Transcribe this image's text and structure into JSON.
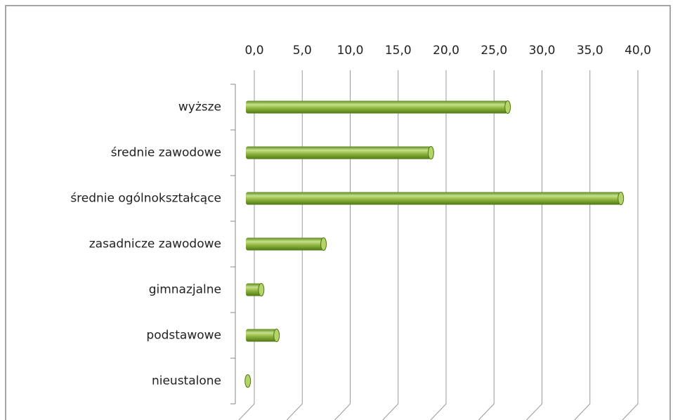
{
  "chart_data": {
    "type": "bar",
    "orientation": "horizontal",
    "categories": [
      "wyższe",
      "średnie zawodowe",
      "średnie ogólnokształcące",
      "zasadnicze zawodowe",
      "gimnazjalne",
      "podstawowe",
      "nieustalone"
    ],
    "values": [
      27.3,
      19.3,
      39.1,
      8.1,
      1.6,
      3.2,
      0.2
    ],
    "color": "#8cb43c",
    "xlim": [
      0,
      40
    ],
    "xticks": [
      {
        "value": 0,
        "label": "0,0"
      },
      {
        "value": 5,
        "label": "5,0"
      },
      {
        "value": 10,
        "label": "10,0"
      },
      {
        "value": 15,
        "label": "15,0"
      },
      {
        "value": 20,
        "label": "20,0"
      },
      {
        "value": 25,
        "label": "25,0"
      },
      {
        "value": 30,
        "label": "30,0"
      },
      {
        "value": 35,
        "label": "35,0"
      },
      {
        "value": 40,
        "label": "40,0"
      }
    ],
    "grid": true
  }
}
